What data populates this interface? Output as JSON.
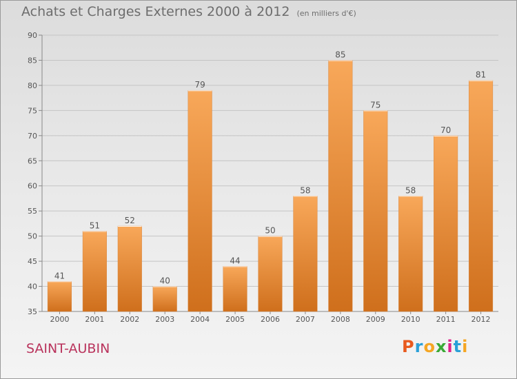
{
  "title": "Achats et Charges Externes 2000 à 2012",
  "unit_label": "(en milliers d'€)",
  "commune": "SAINT-AUBIN",
  "brand": {
    "letters": [
      "P",
      "r",
      "o",
      "x",
      "i",
      "t",
      "i"
    ],
    "colors": [
      "#e85a1e",
      "#2aa0d8",
      "#f5a623",
      "#3aa935",
      "#e0218a",
      "#2aa0d8",
      "#f5a623"
    ]
  },
  "colors": {
    "bar_light": "#f8a85a",
    "bar_dark": "#cf6f1c",
    "title": "#6d6d6d",
    "commune": "#b9335c"
  },
  "chart_data": {
    "type": "bar",
    "title": "Achats et Charges Externes 2000 à 2012",
    "subtitle": "(en milliers d'€)",
    "xlabel": "",
    "ylabel": "",
    "categories": [
      "2000",
      "2001",
      "2002",
      "2003",
      "2004",
      "2005",
      "2006",
      "2007",
      "2008",
      "2009",
      "2010",
      "2011",
      "2012"
    ],
    "values": [
      41,
      51,
      52,
      40,
      79,
      44,
      50,
      58,
      85,
      75,
      58,
      70,
      81
    ],
    "ylim": [
      35,
      90
    ],
    "yticks": [
      35,
      40,
      45,
      50,
      55,
      60,
      65,
      70,
      75,
      80,
      85,
      90
    ],
    "grid": true
  }
}
